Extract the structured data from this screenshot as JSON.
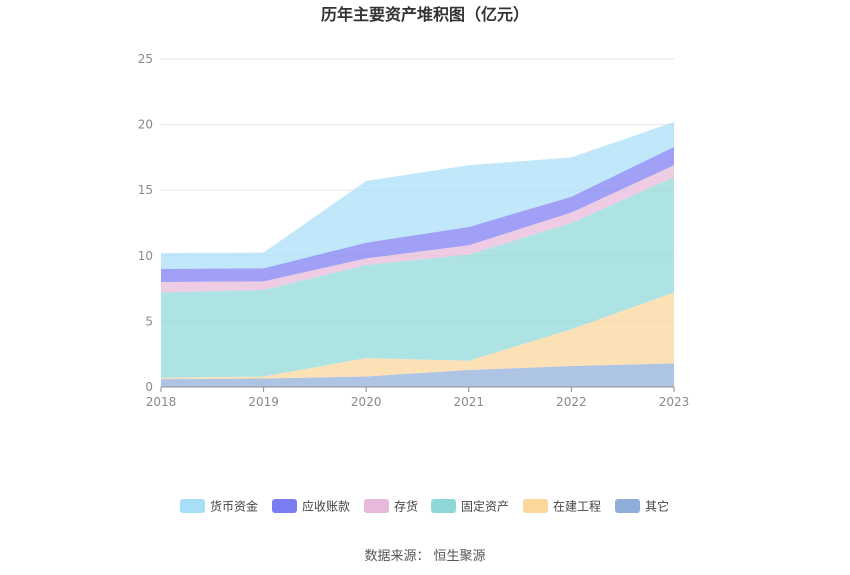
{
  "chart_data": {
    "type": "area",
    "stacked": true,
    "title": "历年主要资产堆积图（亿元）",
    "categories": [
      "2018",
      "2019",
      "2020",
      "2021",
      "2022",
      "2023"
    ],
    "ylim": [
      0,
      25
    ],
    "yticks": [
      "0",
      "5",
      "10",
      "15",
      "20",
      "25"
    ],
    "grid": true,
    "legend_position": "bottom",
    "series": [
      {
        "name": "其它",
        "color": "#8fadd9",
        "values": [
          0.6,
          0.65,
          0.8,
          1.3,
          1.6,
          1.8
        ]
      },
      {
        "name": "在建工程",
        "color": "#fcd69a",
        "values": [
          0.1,
          0.15,
          1.4,
          0.7,
          2.8,
          5.4
        ]
      },
      {
        "name": "固定资产",
        "color": "#8fd8d8",
        "values": [
          6.5,
          6.6,
          7.1,
          8.1,
          8.1,
          8.8
        ]
      },
      {
        "name": "存货",
        "color": "#e8b9da",
        "values": [
          0.8,
          0.65,
          0.5,
          0.7,
          0.8,
          0.9
        ]
      },
      {
        "name": "应收账款",
        "color": "#7b7bf2",
        "values": [
          1.0,
          1.0,
          1.2,
          1.4,
          1.2,
          1.4
        ]
      },
      {
        "name": "货币资金",
        "color": "#a7def8",
        "values": [
          1.2,
          1.2,
          4.7,
          4.7,
          3.0,
          1.9
        ]
      }
    ],
    "legend_order": [
      "货币资金",
      "应收账款",
      "存货",
      "固定资产",
      "在建工程",
      "其它"
    ]
  },
  "source_label": "数据来源：",
  "source_name": "恒生聚源"
}
